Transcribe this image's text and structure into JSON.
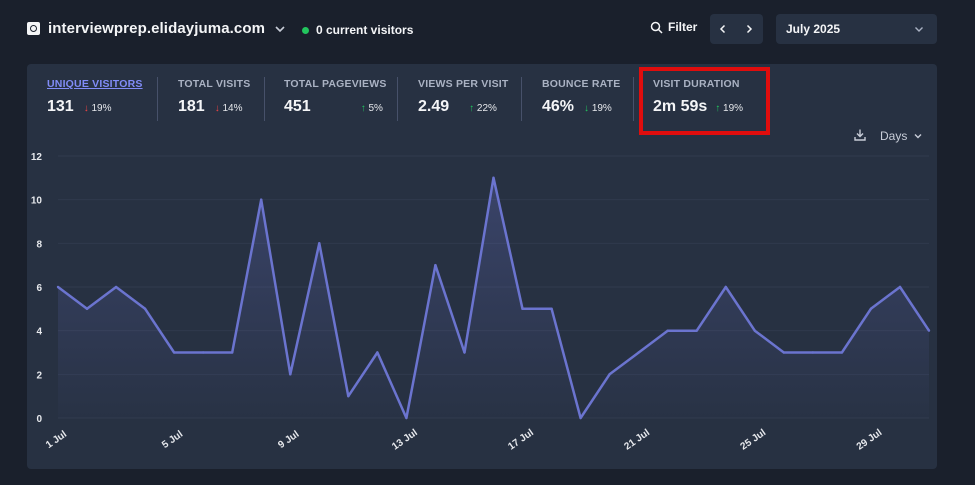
{
  "header": {
    "site_name": "interviewprep.elidayjuma.com",
    "current_visitors": "0 current visitors",
    "filter_label": "Filter",
    "date_range": "July 2025"
  },
  "stats": [
    {
      "label": "UNIQUE VISITORS",
      "value": "131",
      "arrow": "↓",
      "direction": "down",
      "change": "19%"
    },
    {
      "label": "TOTAL VISITS",
      "value": "181",
      "arrow": "↓",
      "direction": "down",
      "change": "14%"
    },
    {
      "label": "TOTAL PAGEVIEWS",
      "value": "451",
      "arrow": "↑",
      "direction": "up",
      "change": "5%"
    },
    {
      "label": "VIEWS PER VISIT",
      "value": "2.49",
      "arrow": "↑",
      "direction": "up",
      "change": "22%"
    },
    {
      "label": "BOUNCE RATE",
      "value": "46%",
      "arrow": "↓",
      "direction": "down",
      "change": "19%"
    },
    {
      "label": "VISIT DURATION",
      "value": "2m 59s",
      "arrow": "↑",
      "direction": "up",
      "change": "19%"
    }
  ],
  "interval_label": "Days",
  "colors": {
    "line": "#6b74cf",
    "highlight": "#e00d0d",
    "accent": "#818cf8"
  },
  "chart_data": {
    "type": "line",
    "x": [
      "1 Jul",
      "2 Jul",
      "3 Jul",
      "4 Jul",
      "5 Jul",
      "6 Jul",
      "7 Jul",
      "8 Jul",
      "9 Jul",
      "10 Jul",
      "11 Jul",
      "12 Jul",
      "13 Jul",
      "14 Jul",
      "15 Jul",
      "16 Jul",
      "17 Jul",
      "18 Jul",
      "19 Jul",
      "20 Jul",
      "21 Jul",
      "22 Jul",
      "23 Jul",
      "24 Jul",
      "25 Jul",
      "26 Jul",
      "27 Jul",
      "28 Jul",
      "29 Jul",
      "30 Jul",
      "31 Jul"
    ],
    "values": [
      6,
      5,
      6,
      5,
      3,
      3,
      3,
      10,
      2,
      8,
      1,
      3,
      0,
      7,
      3,
      11,
      5,
      5,
      0,
      2,
      3,
      4,
      4,
      6,
      4,
      3,
      3,
      3,
      5,
      6,
      4
    ],
    "xtick_labels": [
      "1 Jul",
      "5 Jul",
      "9 Jul",
      "13 Jul",
      "17 Jul",
      "21 Jul",
      "25 Jul",
      "29 Jul"
    ],
    "yticks": [
      0,
      2,
      4,
      6,
      8,
      10,
      12
    ],
    "ylim": [
      0,
      12
    ],
    "grid": true
  }
}
